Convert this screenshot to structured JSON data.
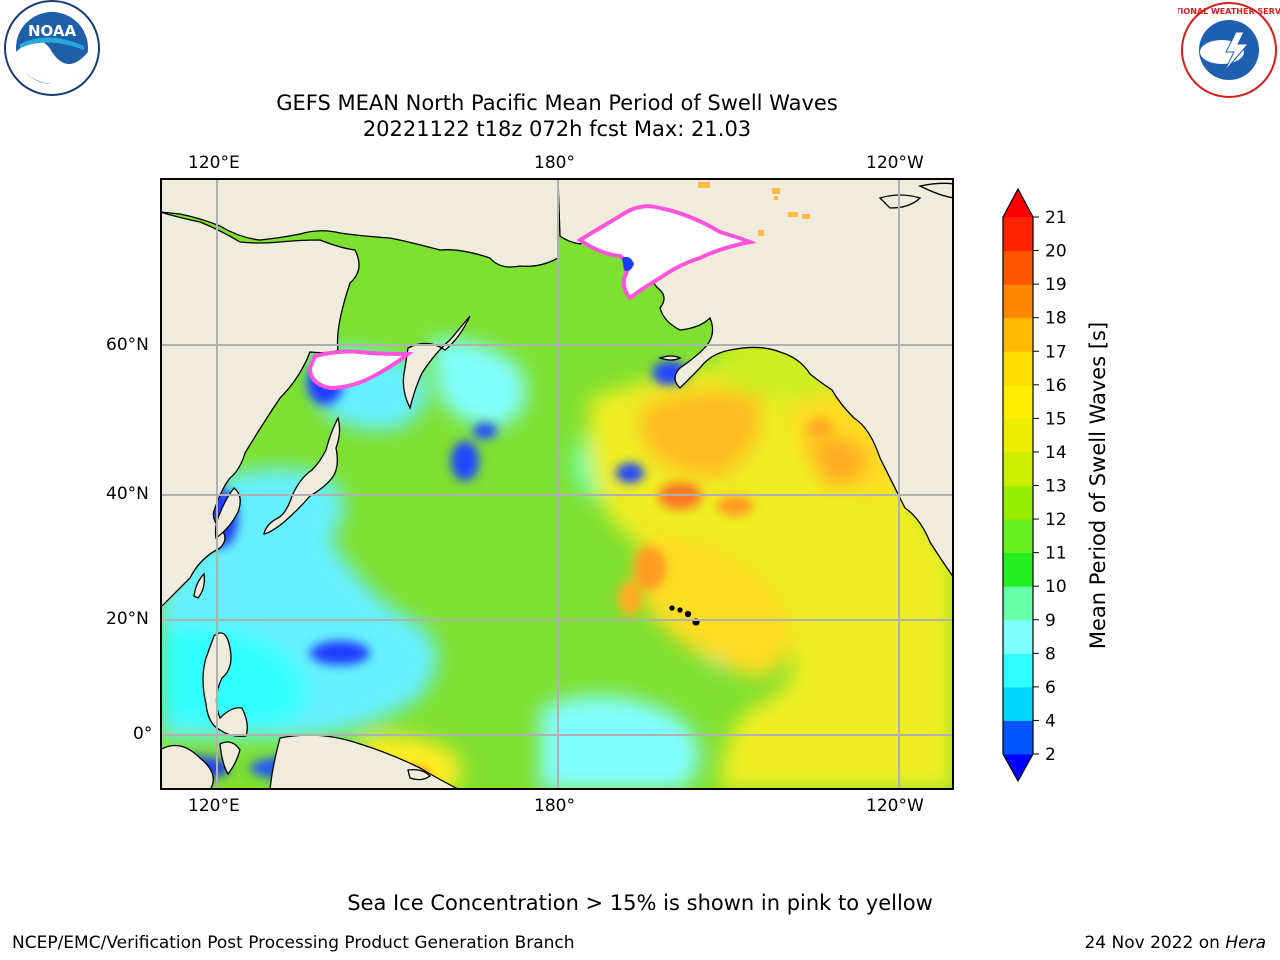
{
  "title": {
    "line1": "GEFS MEAN North Pacific Mean Period of Swell Waves",
    "line2": "20221122 t18z 072h fcst   Max: 21.03"
  },
  "map": {
    "lon_ticks_top": [
      "120°E",
      "180°",
      "120°W"
    ],
    "lon_ticks_bottom": [
      "120°E",
      "180°",
      "120°W"
    ],
    "lat_ticks": [
      "60°N",
      "40°N",
      "20°N",
      "0°"
    ],
    "land_color": "#efecdc",
    "grid_color": "#b0b0b0"
  },
  "colorbar": {
    "label": "Mean Period of Swell Waves [s]",
    "ticks": [
      "2",
      "4",
      "6",
      "8",
      "9",
      "10",
      "11",
      "12",
      "13",
      "14",
      "15",
      "16",
      "17",
      "18",
      "19",
      "20",
      "21"
    ],
    "under_color": "#0000ff",
    "over_color": "#ff0000",
    "colors": [
      "#0055ff",
      "#00d8ff",
      "#30ffff",
      "#80ffff",
      "#66ffaa",
      "#22ee22",
      "#66ee22",
      "#99ee00",
      "#ccee00",
      "#eeee00",
      "#ffee00",
      "#ffdd00",
      "#ffbb00",
      "#ff8800",
      "#ff5500",
      "#ff2200"
    ]
  },
  "note": "Sea Ice Concentration > 15% is shown in pink to yellow",
  "footer": {
    "left": "NCEP/EMC/Verification Post Processing Product Generation Branch",
    "right_prefix": "24 Nov 2022 on ",
    "right_host": "Hera"
  },
  "logos": {
    "noaa": "NOAA",
    "nws": "NATIONAL WEATHER SERVICE"
  }
}
